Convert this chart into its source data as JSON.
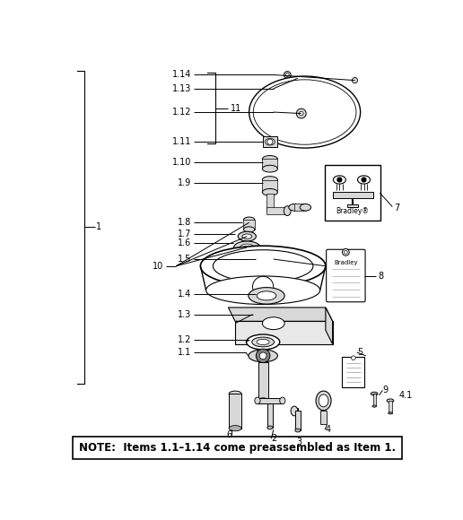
{
  "note_text": "NOTE:  Items 1.1–1.14 come preassembled as Item 1.",
  "background_color": "#ffffff",
  "fig_width": 5.16,
  "fig_height": 5.8
}
